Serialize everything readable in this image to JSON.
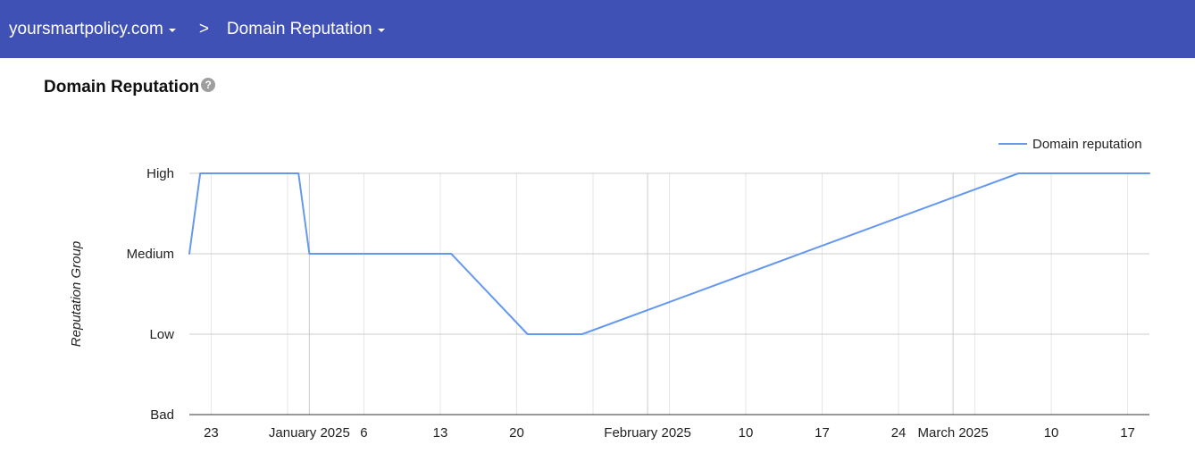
{
  "header": {
    "domain_label": "yoursmartpolicy.com",
    "separator": ">",
    "section_label": "Domain Reputation"
  },
  "page": {
    "title": "Domain Reputation",
    "help_icon": "help-circle-icon",
    "help_glyph": "?"
  },
  "colors": {
    "header_bg": "#3f51b5",
    "line": "#6699ee",
    "grid": "#cccccc",
    "minor_grid": "#e6e6e6"
  },
  "chart_data": {
    "type": "line",
    "title": "",
    "xlabel": "",
    "ylabel": "Reputation Group",
    "y_categories": [
      "Bad",
      "Low",
      "Medium",
      "High"
    ],
    "ylim": [
      0,
      3
    ],
    "xlim": [
      "2024-12-21",
      "2025-03-19"
    ],
    "grid": true,
    "legend_position": "top-right",
    "series": [
      {
        "name": "Domain reputation",
        "points": [
          {
            "x": "2024-12-21",
            "y": "Medium"
          },
          {
            "x": "2024-12-22",
            "y": "High"
          },
          {
            "x": "2024-12-31",
            "y": "High"
          },
          {
            "x": "2025-01-01",
            "y": "Medium"
          },
          {
            "x": "2025-01-14",
            "y": "Medium"
          },
          {
            "x": "2025-01-21",
            "y": "Low"
          },
          {
            "x": "2025-01-26",
            "y": "Low"
          },
          {
            "x": "2025-03-07",
            "y": "High"
          },
          {
            "x": "2025-03-19",
            "y": "High"
          }
        ]
      }
    ],
    "x_ticks": [
      {
        "label": "23",
        "date": "2024-12-23"
      },
      {
        "label": "January 2025",
        "date": "2025-01-01"
      },
      {
        "label": "6",
        "date": "2025-01-06"
      },
      {
        "label": "13",
        "date": "2025-01-13"
      },
      {
        "label": "20",
        "date": "2025-01-20"
      },
      {
        "label": "February 2025",
        "date": "2025-02-01"
      },
      {
        "label": "10",
        "date": "2025-02-10"
      },
      {
        "label": "17",
        "date": "2025-02-17"
      },
      {
        "label": "24",
        "date": "2025-02-24"
      },
      {
        "label": "March 2025",
        "date": "2025-03-01"
      },
      {
        "label": "10",
        "date": "2025-03-10"
      },
      {
        "label": "17",
        "date": "2025-03-17"
      }
    ],
    "minor_gridlines": [
      "2024-12-23",
      "2024-12-30",
      "2025-01-06",
      "2025-01-13",
      "2025-01-20",
      "2025-01-27",
      "2025-02-03",
      "2025-02-10",
      "2025-02-17",
      "2025-02-24",
      "2025-03-03",
      "2025-03-10",
      "2025-03-17"
    ],
    "major_gridlines": [
      "2025-01-01",
      "2025-02-01",
      "2025-03-01"
    ]
  }
}
